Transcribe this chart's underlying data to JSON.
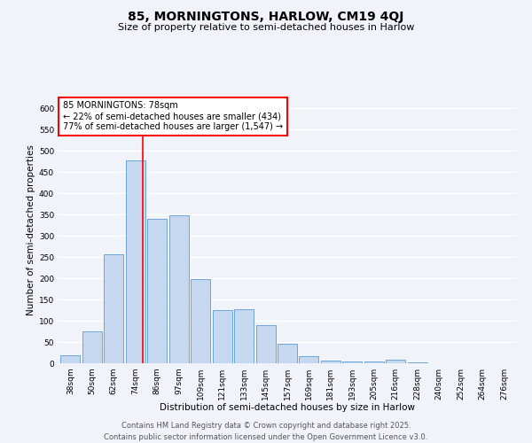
{
  "title": "85, MORNINGTONS, HARLOW, CM19 4QJ",
  "subtitle": "Size of property relative to semi-detached houses in Harlow",
  "xlabel": "Distribution of semi-detached houses by size in Harlow",
  "ylabel": "Number of semi-detached properties",
  "categories": [
    "38sqm",
    "50sqm",
    "62sqm",
    "74sqm",
    "86sqm",
    "97sqm",
    "109sqm",
    "121sqm",
    "133sqm",
    "145sqm",
    "157sqm",
    "169sqm",
    "181sqm",
    "193sqm",
    "205sqm",
    "216sqm",
    "228sqm",
    "240sqm",
    "252sqm",
    "264sqm",
    "276sqm"
  ],
  "values": [
    18,
    75,
    257,
    477,
    340,
    348,
    198,
    126,
    127,
    90,
    46,
    17,
    7,
    5,
    5,
    9,
    3,
    1,
    0,
    1,
    1
  ],
  "bar_color": "#c5d8f0",
  "bar_edge_color": "#5b9bd5",
  "background_color": "#f0f4fa",
  "grid_color": "#ffffff",
  "marker_label": "85 MORNINGTONS: 78sqm",
  "annotation_line1": "← 22% of semi-detached houses are smaller (434)",
  "annotation_line2": "77% of semi-detached houses are larger (1,547) →",
  "footer_line1": "Contains HM Land Registry data © Crown copyright and database right 2025.",
  "footer_line2": "Contains public sector information licensed under the Open Government Licence v3.0.",
  "ylim": [
    0,
    625
  ],
  "yticks": [
    0,
    50,
    100,
    150,
    200,
    250,
    300,
    350,
    400,
    450,
    500,
    550,
    600
  ],
  "title_fontsize": 10,
  "subtitle_fontsize": 8,
  "axis_label_fontsize": 7.5,
  "tick_fontsize": 6.5,
  "annotation_fontsize": 7,
  "footer_fontsize": 6
}
